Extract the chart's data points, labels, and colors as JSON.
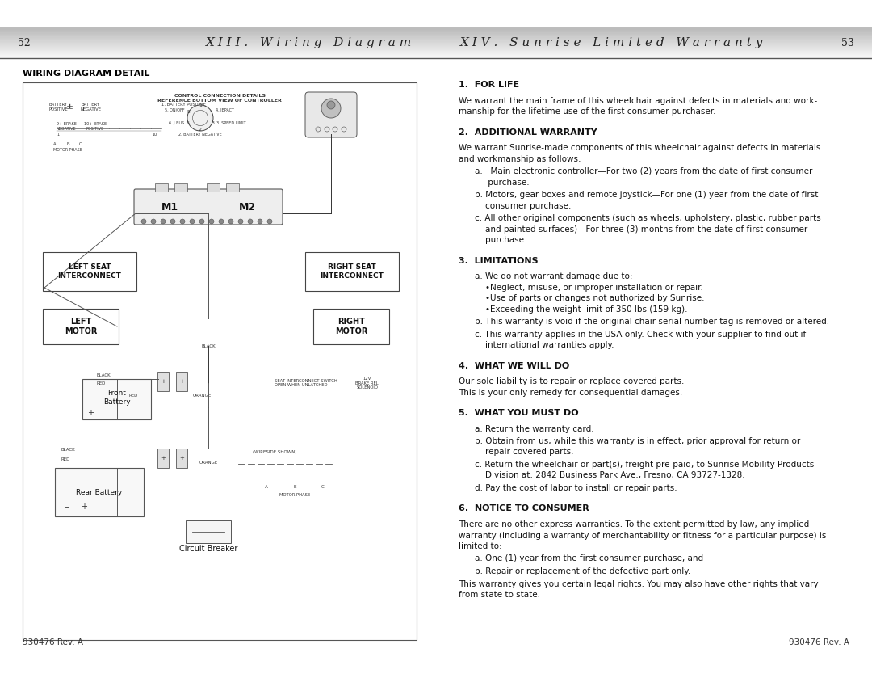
{
  "bg_color": "#f0f0f0",
  "page_bg": "#ffffff",
  "left_page_num": "52",
  "right_page_num": "53",
  "left_header": "X I I I .   W i r i n g   D i a g r a m",
  "right_header": "X I V .   S u n r i s e   L i m i t e d   W a r r a n t y",
  "left_section_title": "WIRING DIAGRAM DETAIL",
  "right_sections": [
    {
      "heading": "1.  FOR LIFE",
      "paragraphs": [
        {
          "type": "body",
          "lines": [
            "We warrant the main frame of this wheelchair against defects in materials and work-",
            "manship for the lifetime use of the first consumer purchaser."
          ]
        }
      ]
    },
    {
      "heading": "2.  ADDITIONAL WARRANTY",
      "paragraphs": [
        {
          "type": "body",
          "lines": [
            "We warrant Sunrise-made components of this wheelchair against defects in materials",
            "and workmanship as follows:"
          ]
        },
        {
          "type": "list_a",
          "lines": [
            "a.   Main electronic controller—For two (2) years from the date of first consumer",
            "     purchase."
          ]
        },
        {
          "type": "list_b",
          "lines": [
            "b. Motors, gear boxes and remote joystick—For one (1) year from the date of first",
            "    consumer purchase."
          ]
        },
        {
          "type": "list_c",
          "lines": [
            "c. All other original components (such as wheels, upholstery, plastic, rubber parts",
            "    and painted surfaces)—For three (3) months from the date of first consumer",
            "    purchase."
          ]
        }
      ]
    },
    {
      "heading": "3.  LIMITATIONS",
      "paragraphs": [
        {
          "type": "list_a",
          "lines": [
            "a. We do not warrant damage due to:",
            "    •Neglect, misuse, or improper installation or repair.",
            "    •Use of parts or changes not authorized by Sunrise.",
            "    •Exceeding the weight limit of 350 lbs (159 kg)."
          ]
        },
        {
          "type": "list_b",
          "lines": [
            "b. This warranty is void if the original chair serial number tag is removed or altered."
          ]
        },
        {
          "type": "list_c",
          "lines": [
            "c. This warranty applies in the USA only. Check with your supplier to find out if",
            "    international warranties apply."
          ]
        }
      ]
    },
    {
      "heading": "4.  WHAT WE WILL DO",
      "paragraphs": [
        {
          "type": "body",
          "lines": [
            "Our sole liability is to repair or replace covered parts.",
            "This is your only remedy for consequential damages."
          ]
        }
      ]
    },
    {
      "heading": "5.  WHAT YOU MUST DO",
      "paragraphs": [
        {
          "type": "list_a",
          "lines": [
            "a. Return the warranty card."
          ]
        },
        {
          "type": "list_b",
          "lines": [
            "b. Obtain from us, while this warranty is in effect, prior approval for return or",
            "    repair covered parts."
          ]
        },
        {
          "type": "list_c",
          "lines": [
            "c. Return the wheelchair or part(s), freight pre-paid, to Sunrise Mobility Products",
            "    Division at: 2842 Business Park Ave., Fresno, CA 93727-1328."
          ]
        },
        {
          "type": "list_d",
          "lines": [
            "d. Pay the cost of labor to install or repair parts."
          ]
        }
      ]
    },
    {
      "heading": "6.  NOTICE TO CONSUMER",
      "paragraphs": [
        {
          "type": "body",
          "lines": [
            "There are no other express warranties. To the extent permitted by law, any implied",
            "warranty (including a warranty of merchantability or fitness for a particular purpose) is",
            "limited to:"
          ]
        },
        {
          "type": "list_a",
          "lines": [
            "a. One (1) year from the first consumer purchase, and"
          ]
        },
        {
          "type": "list_b",
          "lines": [
            "b. Repair or replacement of the defective part only."
          ]
        },
        {
          "type": "body",
          "lines": [
            "This warranty gives you certain legal rights. You may also have other rights that vary",
            "from state to state."
          ]
        }
      ]
    }
  ],
  "footer_text": "930476 Rev. A",
  "divider_color": "#888888",
  "text_color": "#1a1a1a",
  "heading_color": "#000000",
  "box_color": "#444444"
}
